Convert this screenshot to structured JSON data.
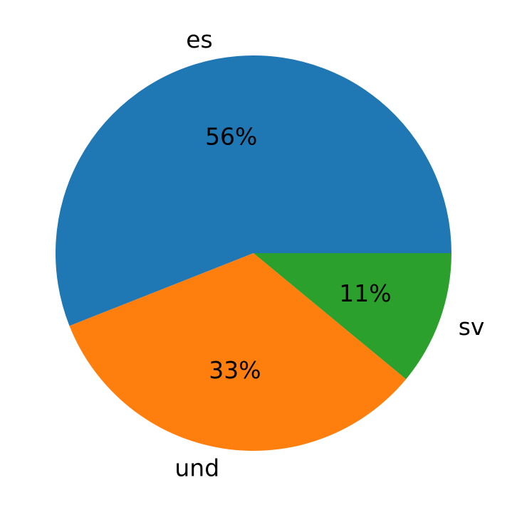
{
  "chart_data": {
    "type": "pie",
    "categories": [
      "es",
      "und",
      "sv"
    ],
    "values": [
      56,
      33,
      11
    ],
    "value_labels": [
      "56%",
      "33%",
      "11%"
    ],
    "colors": [
      "#1f77b4",
      "#ff7f0e",
      "#2ca02c"
    ],
    "start_angle_deg": 0,
    "direction": "counterclockwise",
    "legend": "none"
  }
}
